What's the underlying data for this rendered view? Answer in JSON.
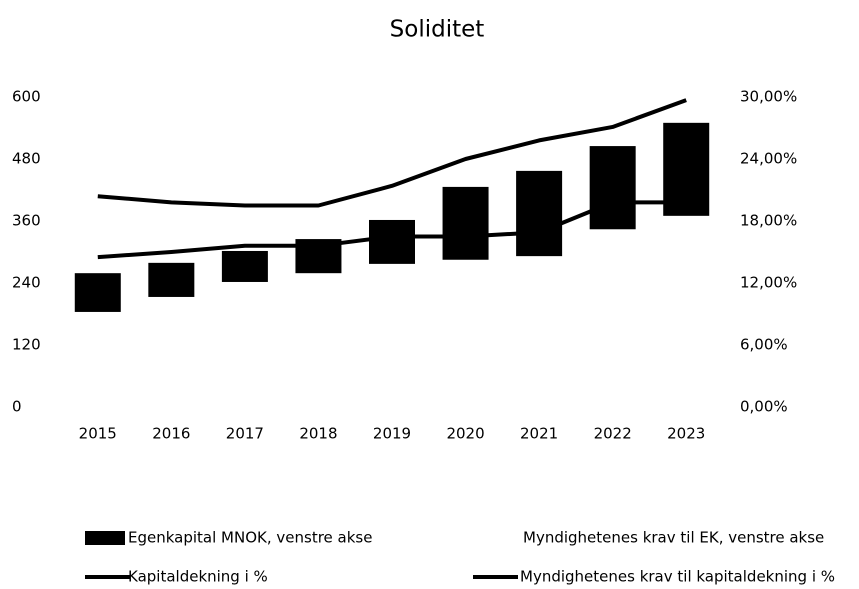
{
  "chart_data": {
    "type": "combo",
    "title": "Soliditet",
    "categories": [
      "2015",
      "2016",
      "2017",
      "2018",
      "2019",
      "2020",
      "2021",
      "2022",
      "2023"
    ],
    "series": [
      {
        "name": "Myndighetenes krav til EK, venstre akse",
        "type": "bar",
        "color": "none",
        "values": [
          184,
          213,
          242,
          259,
          277,
          285,
          292,
          344,
          370
        ]
      },
      {
        "name": "Egenkapital MNOK, venstre akse",
        "type": "bar",
        "color": "#000000",
        "values": [
          75,
          66,
          60,
          66,
          85,
          141,
          165,
          161,
          180
        ]
      },
      {
        "name": "Kapitaldekning i %",
        "type": "line",
        "axis": "y2",
        "color": "#000000",
        "values": [
          20.4,
          19.8,
          19.5,
          19.5,
          21.4,
          24.0,
          25.8,
          27.1,
          29.7
        ]
      },
      {
        "name": "Myndighetenes krav til kapitaldekning i %",
        "type": "line",
        "axis": "y2",
        "color": "#000000",
        "values": [
          14.5,
          15.0,
          15.6,
          15.6,
          16.5,
          16.5,
          16.9,
          19.8,
          19.8
        ]
      }
    ],
    "stacked": true,
    "ylim": [
      0,
      600
    ],
    "yticks": [
      0,
      120,
      240,
      360,
      480,
      600
    ],
    "y2lim": [
      0,
      30
    ],
    "y2ticks": [
      {
        "value": 0,
        "label": "0,00%"
      },
      {
        "value": 6,
        "label": "6,00%"
      },
      {
        "value": 12,
        "label": "12,00%"
      },
      {
        "value": 18,
        "label": "18,00%"
      },
      {
        "value": 24,
        "label": "24,00%"
      },
      {
        "value": 30,
        "label": "30,00%"
      }
    ],
    "grid": false,
    "legend": "bottom"
  }
}
